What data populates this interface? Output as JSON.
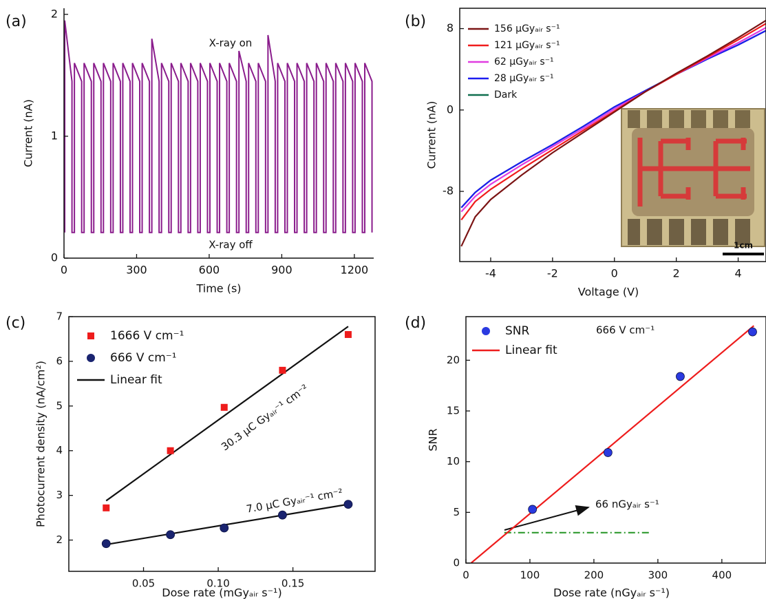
{
  "chart_data": [
    {
      "type": "line",
      "label": "(a)",
      "x_label": "Time (s)",
      "y_label": "Current (nA)",
      "annotations": [
        "X-ray on",
        "X-ray off"
      ],
      "xlim": [
        0,
        1280
      ],
      "xticks": [
        0,
        300,
        600,
        900,
        1200
      ],
      "ylim": [
        0,
        2.05
      ],
      "yticks": [
        0,
        1,
        2
      ],
      "series": [
        {
          "color": "#8a1c8c",
          "style": "line",
          "x": [
            3,
            3,
            33,
            33,
            43,
            43,
            73,
            73,
            83,
            83,
            113,
            113,
            123,
            123,
            153,
            153,
            163,
            163,
            193,
            193,
            203,
            203,
            233,
            233,
            243,
            243,
            273,
            273,
            283,
            283,
            313,
            313,
            323,
            323,
            353,
            353,
            363,
            363,
            393,
            393,
            403,
            403,
            433,
            433,
            443,
            443,
            473,
            473,
            483,
            483,
            513,
            513,
            523,
            523,
            553,
            553,
            563,
            563,
            593,
            593,
            603,
            603,
            633,
            633,
            643,
            643,
            673,
            673,
            683,
            683,
            713,
            713,
            723,
            723,
            753,
            753,
            763,
            763,
            793,
            793,
            803,
            803,
            833,
            833,
            843,
            843,
            873,
            873,
            883,
            883,
            913,
            913,
            923,
            923,
            953,
            953,
            963,
            963,
            993,
            993,
            1003,
            1003,
            1033,
            1033,
            1043,
            1043,
            1073,
            1073,
            1083,
            1083,
            1113,
            1113,
            1123,
            1123,
            1153,
            1153,
            1163,
            1163,
            1193,
            1193,
            1203,
            1203,
            1233,
            1233,
            1243,
            1243,
            1273,
            1273
          ],
          "values": [
            0.21,
            1.95,
            1.45,
            0.21,
            0.21,
            1.6,
            1.45,
            0.21,
            0.21,
            1.6,
            1.45,
            0.21,
            0.21,
            1.6,
            1.45,
            0.21,
            0.21,
            1.6,
            1.45,
            0.21,
            0.21,
            1.6,
            1.45,
            0.21,
            0.21,
            1.6,
            1.45,
            0.21,
            0.21,
            1.6,
            1.45,
            0.21,
            0.21,
            1.6,
            1.45,
            0.21,
            0.21,
            1.8,
            1.45,
            0.21,
            0.21,
            1.6,
            1.45,
            0.21,
            0.21,
            1.6,
            1.45,
            0.21,
            0.21,
            1.6,
            1.45,
            0.21,
            0.21,
            1.6,
            1.45,
            0.21,
            0.21,
            1.6,
            1.45,
            0.21,
            0.21,
            1.6,
            1.45,
            0.21,
            0.21,
            1.6,
            1.45,
            0.21,
            0.21,
            1.6,
            1.45,
            0.21,
            0.21,
            1.7,
            1.45,
            0.21,
            0.21,
            1.6,
            1.45,
            0.21,
            0.21,
            1.6,
            1.45,
            0.21,
            0.21,
            1.83,
            1.45,
            0.21,
            0.21,
            1.6,
            1.45,
            0.21,
            0.21,
            1.6,
            1.45,
            0.21,
            0.21,
            1.6,
            1.45,
            0.21,
            0.21,
            1.6,
            1.45,
            0.21,
            0.21,
            1.6,
            1.45,
            0.21,
            0.21,
            1.6,
            1.45,
            0.21,
            0.21,
            1.6,
            1.45,
            0.21,
            0.21,
            1.6,
            1.45,
            0.21,
            0.21,
            1.6,
            1.45,
            0.21,
            0.21,
            1.6,
            1.45,
            0.21
          ]
        }
      ]
    },
    {
      "type": "line",
      "label": "(b)",
      "x_label": "Voltage (V)",
      "y_label": "Current (nA)",
      "inset_scale_label": "1cm",
      "xlim": [
        -5,
        4.9
      ],
      "xticks": [
        -4,
        -2,
        0,
        2,
        4
      ],
      "ylim": [
        -14.9,
        10
      ],
      "yticks": [
        -8,
        0,
        8
      ],
      "series": [
        {
          "name": "156 μGyₐᵢᵣ s⁻¹",
          "color": "#7b1414",
          "style": "line",
          "x": [
            -4.95,
            -4.5,
            -4,
            -3,
            -2,
            -1,
            0,
            1,
            2,
            3,
            4,
            4.9
          ],
          "values": [
            -13.4,
            -10.5,
            -8.8,
            -6.4,
            -4.2,
            -2.2,
            -0.2,
            1.8,
            3.6,
            5.3,
            7.1,
            8.8
          ]
        },
        {
          "name": "121 μGyₐᵢᵣ s⁻¹",
          "color": "#f01c1c",
          "style": "line",
          "x": [
            -4.95,
            -4.5,
            -4,
            -3,
            -2,
            -1,
            0,
            1,
            2,
            3,
            4,
            4.9
          ],
          "values": [
            -10.8,
            -9.0,
            -7.8,
            -5.8,
            -3.9,
            -2.0,
            -0.1,
            1.8,
            3.5,
            5.2,
            6.9,
            8.5
          ]
        },
        {
          "name": "62 μGyₐᵢᵣ s⁻¹",
          "color": "#e03ce0",
          "style": "line",
          "x": [
            -4.95,
            -4.5,
            -4,
            -3,
            -2,
            -1,
            0,
            1,
            2,
            3,
            4,
            4.9
          ],
          "values": [
            -10.0,
            -8.5,
            -7.3,
            -5.4,
            -3.6,
            -1.8,
            0.1,
            1.8,
            3.5,
            5.1,
            6.6,
            8.1
          ]
        },
        {
          "name": "28 μGyₐᵢᵣ s⁻¹",
          "color": "#1c1cf0",
          "style": "line",
          "x": [
            -4.95,
            -4.5,
            -4,
            -3,
            -2,
            -1,
            0,
            1,
            2,
            3,
            4,
            4.9
          ],
          "values": [
            -9.6,
            -8.1,
            -6.9,
            -5.1,
            -3.4,
            -1.6,
            0.3,
            1.9,
            3.5,
            5.0,
            6.4,
            7.8
          ]
        },
        {
          "name": "Dark",
          "color": "#0e6e4e",
          "style": "line",
          "x": [
            -4.95,
            -4.5,
            -4,
            -3,
            -2,
            -1,
            0,
            1,
            2,
            3,
            4,
            4.9
          ],
          "values": [
            -9.6,
            -8.1,
            -6.9,
            -5.1,
            -3.4,
            -1.6,
            0.3,
            1.9,
            3.5,
            5.0,
            6.4,
            7.8
          ]
        }
      ]
    },
    {
      "type": "scatter",
      "label": "(c)",
      "x_label": "Dose rate (mGyₐᵢᵣ s⁻¹)",
      "y_label": "Photocurrent density (nA/cm²)",
      "annotations": [
        "30.3 μC Gyₐᵢᵣ⁻¹ cm⁻²",
        "7.0 μC Gyₐᵢᵣ⁻¹ cm⁻²"
      ],
      "xlim": [
        0,
        0.205
      ],
      "xticks": [
        0.05,
        {
          "value": 0.1,
          "label": "0.10"
        },
        0.15
      ],
      "ylim": [
        1.3,
        7
      ],
      "yticks": [
        2,
        3,
        4,
        5,
        6,
        7
      ],
      "series": [
        {
          "name": "1666 V cm⁻¹",
          "color": "#ee1c1c",
          "style": "square",
          "x": [
            0.025,
            0.068,
            0.104,
            0.143,
            0.187
          ],
          "values": [
            2.72,
            4.0,
            4.97,
            5.8,
            6.6
          ]
        },
        {
          "name": "666 V cm⁻¹",
          "color": "#1a2470",
          "style": "circle",
          "x": [
            0.025,
            0.068,
            0.104,
            0.143,
            0.187
          ],
          "values": [
            1.92,
            2.12,
            2.27,
            2.56,
            2.8
          ]
        },
        {
          "name": "Linear fit",
          "color": "#111111",
          "style": "line",
          "x": [
            0.025,
            0.187
          ],
          "values": [
            2.88,
            6.78
          ]
        },
        {
          "color": "#111111",
          "style": "line",
          "x": [
            0.025,
            0.187
          ],
          "values": [
            1.9,
            2.8
          ]
        }
      ]
    },
    {
      "type": "scatter",
      "label": "(d)",
      "x_label": "Dose rate (nGyₐᵢᵣ s⁻¹)",
      "y_label": "SNR",
      "annotations": [
        "666 V cm⁻¹",
        "66 nGyₐᵢᵣ s⁻¹"
      ],
      "xlim": [
        0,
        469
      ],
      "xticks": [
        0,
        100,
        200,
        300,
        400
      ],
      "ylim": [
        0,
        24.3
      ],
      "yticks": [
        0,
        5,
        10,
        15,
        20
      ],
      "series": [
        {
          "name": "SNR",
          "color": "#2a3ae0",
          "style": "circle",
          "x": [
            104,
            222,
            335,
            448
          ],
          "values": [
            5.3,
            10.9,
            18.4,
            22.8
          ]
        },
        {
          "name": "Linear fit",
          "color": "#ee1c1c",
          "style": "line",
          "x": [
            8,
            450
          ],
          "values": [
            0,
            23.4
          ]
        },
        {
          "color": "#2e9a2e",
          "style": "dash-dot",
          "x": [
            60,
            290
          ],
          "values": [
            3,
            3
          ]
        }
      ]
    }
  ]
}
